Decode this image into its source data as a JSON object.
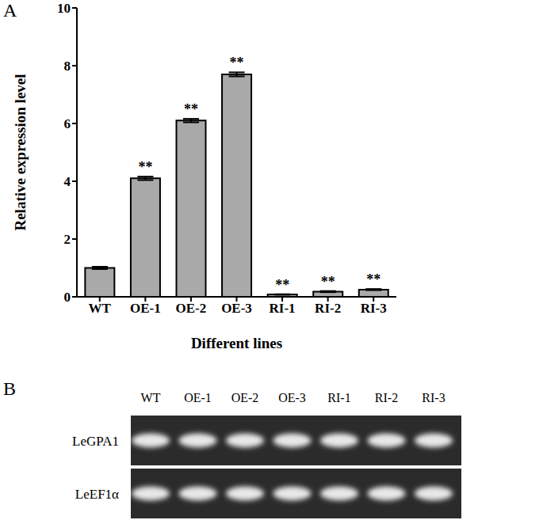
{
  "chart_data": {
    "type": "bar",
    "panel_label": "A",
    "categories": [
      "WT",
      "OE-1",
      "OE-2",
      "OE-3",
      "RI-1",
      "RI-2",
      "RI-3"
    ],
    "values": [
      1.0,
      4.1,
      6.1,
      7.7,
      0.08,
      0.18,
      0.25
    ],
    "errors": [
      0.04,
      0.06,
      0.06,
      0.07,
      0.01,
      0.02,
      0.02
    ],
    "significance": [
      null,
      "**",
      "**",
      "**",
      "**",
      "**",
      "**"
    ],
    "color": "#a9a9a9",
    "x_label": "Different lines",
    "y_label": "Relative expression level",
    "ylim": [
      0,
      10
    ],
    "yticks": [
      0,
      2,
      4,
      6,
      8,
      10
    ],
    "grid": false
  },
  "gel": {
    "panel_label": "B",
    "lanes": [
      "WT",
      "OE-1",
      "OE-2",
      "OE-3",
      "RI-1",
      "RI-2",
      "RI-3"
    ],
    "rows": [
      "LeGPA1",
      "LeEF1α"
    ]
  }
}
